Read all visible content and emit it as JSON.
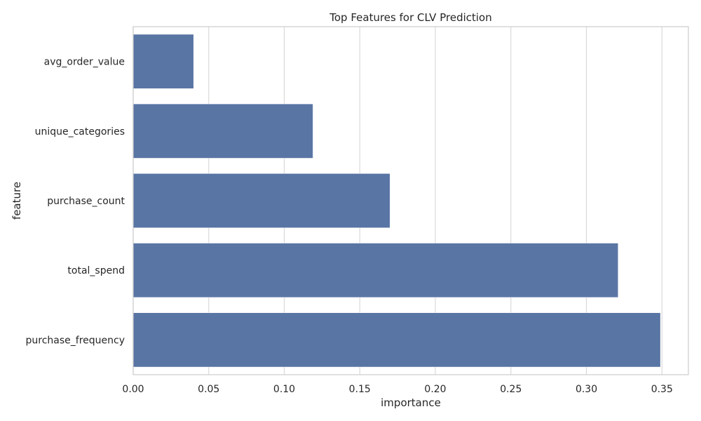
{
  "chart_data": {
    "type": "bar",
    "orientation": "horizontal",
    "title": "Top Features for CLV Prediction",
    "xlabel": "importance",
    "ylabel": "feature",
    "categories": [
      "avg_order_value",
      "unique_categories",
      "purchase_count",
      "total_spend",
      "purchase_frequency"
    ],
    "values": [
      0.04,
      0.119,
      0.17,
      0.321,
      0.349
    ],
    "xlim": [
      0.0,
      0.3675
    ],
    "xticks": [
      "0.00",
      "0.05",
      "0.10",
      "0.15",
      "0.20",
      "0.25",
      "0.30",
      "0.35"
    ],
    "grid": true,
    "colors": {
      "bar": "#5975a4",
      "grid": "#d9d9d9",
      "spine": "#cccccc",
      "text": "#262626"
    }
  }
}
